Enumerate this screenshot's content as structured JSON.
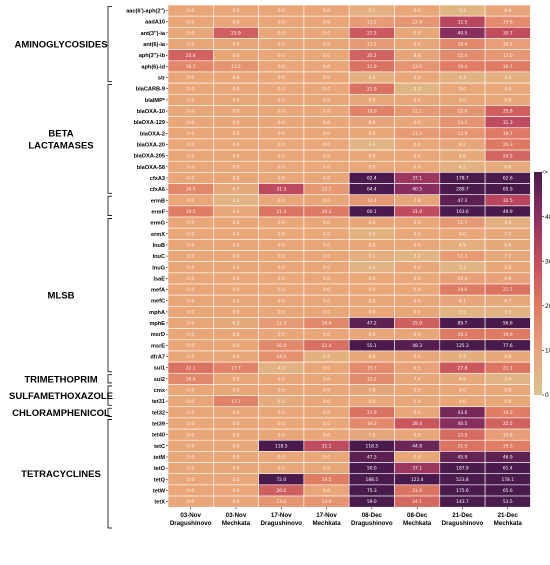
{
  "chart_data": {
    "type": "heatmap",
    "colorbar": {
      "min": 0,
      "max": 50,
      "ticks": [
        0,
        10,
        20,
        30,
        40
      ],
      "max_label": "> 50"
    },
    "columns": [
      {
        "date": "03-Nov",
        "site": "Dragushinovo"
      },
      {
        "date": "03-Nov",
        "site": "Mechkata"
      },
      {
        "date": "17-Nov",
        "site": "Dragushinovo"
      },
      {
        "date": "17-Nov",
        "site": "Mechkata"
      },
      {
        "date": "08-Dec",
        "site": "Dragushinovo"
      },
      {
        "date": "08-Dec",
        "site": "Mechkata"
      },
      {
        "date": "21-Dec",
        "site": "Dragushinovo"
      },
      {
        "date": "21-Dec",
        "site": "Mechkata"
      }
    ],
    "groups": [
      {
        "name": "AMINOGLYCOSIDES",
        "rows": 7
      },
      {
        "name": "BETA LACTAMASES",
        "rows": 10
      },
      {
        "name": "",
        "rows": 2
      },
      {
        "name": "MLSB",
        "rows": 14
      },
      {
        "name": "TRIMETHOPRIM",
        "rows": 1
      },
      {
        "name": "SULFAMETHOXAZOLE",
        "rows": 2
      },
      {
        "name": "CHLORAMPHENICOL",
        "rows": 1
      },
      {
        "name": "TETRACYCLINES",
        "rows": 10
      }
    ],
    "rows": [
      {
        "gene": "aac(6')-aph(2'')",
        "values": [
          0.0,
          0.0,
          0.0,
          0.0,
          5.1,
          0.0,
          3.2,
          8.9
        ]
      },
      {
        "gene": "aadA10",
        "values": [
          0.0,
          0.0,
          0.0,
          0.0,
          11.2,
          12.9,
          32.5,
          15.6
        ]
      },
      {
        "gene": "ant(3'')-ia",
        "values": [
          0.0,
          25.9,
          0.0,
          0.0,
          27.5,
          0.0,
          40.5,
          30.7
        ]
      },
      {
        "gene": "ant(6)-ia",
        "values": [
          0.0,
          0.0,
          0.0,
          0.0,
          11.2,
          0.0,
          16.4,
          10.2
        ]
      },
      {
        "gene": "aph(3'')-ib",
        "values": [
          25.4,
          0.0,
          0.0,
          0.0,
          25.2,
          8.6,
          15.4,
          12.0
        ]
      },
      {
        "gene": "aph(6)-id",
        "values": [
          16.7,
          13.2,
          0.0,
          0.0,
          21.9,
          13.5,
          19.4,
          19.7
        ]
      },
      {
        "gene": "str",
        "values": [
          0.0,
          0.0,
          0.0,
          0.0,
          4.4,
          0.0,
          4.3,
          4.4
        ]
      },
      {
        "gene": "blaCARB-9",
        "values": [
          0.0,
          0.0,
          0.0,
          0.0,
          21.9,
          3.3,
          0.0,
          0.0
        ]
      },
      {
        "gene": "blaIMP*",
        "values": [
          0.0,
          0.0,
          0.0,
          0.0,
          0.0,
          0.0,
          0.0,
          0.0
        ]
      },
      {
        "gene": "blaOXA-10",
        "values": [
          0.0,
          0.0,
          0.0,
          0.0,
          18.0,
          12.1,
          12.9,
          25.9
        ]
      },
      {
        "gene": "blaOXA-129",
        "values": [
          0.0,
          0.0,
          0.0,
          0.0,
          8.9,
          0.0,
          13.1,
          31.3
        ]
      },
      {
        "gene": "blaOXA-2",
        "values": [
          0.0,
          0.0,
          0.0,
          0.0,
          0.0,
          11.2,
          12.9,
          19.7
        ]
      },
      {
        "gene": "blaOXA-20",
        "values": [
          0.0,
          0.0,
          0.0,
          0.0,
          3.4,
          0.0,
          8.2,
          20.3
        ]
      },
      {
        "gene": "blaOXA-205",
        "values": [
          0.0,
          0.0,
          0.0,
          0.0,
          0.0,
          0.0,
          6.8,
          24.5
        ]
      },
      {
        "gene": "blaOXA-58",
        "values": [
          0.0,
          0.0,
          0.0,
          0.0,
          0.0,
          0.0,
          4.2,
          6.6
        ]
      },
      {
        "gene": "cfxA3",
        "values": [
          0.0,
          0.0,
          0.0,
          0.0,
          62.4,
          37.1,
          178.7,
          62.6
        ]
      },
      {
        "gene": "cfxA6",
        "values": [
          16.5,
          6.7,
          31.3,
          12.2,
          64.4,
          40.5,
          289.7,
          65.9
        ]
      },
      {
        "gene": "ermB",
        "values": [
          0.0,
          3.4,
          0.0,
          0.0,
          12.4,
          7.8,
          47.3,
          32.5
        ]
      },
      {
        "gene": "ermF",
        "values": [
          19.5,
          0.0,
          21.3,
          20.3,
          60.1,
          31.0,
          163.6,
          49.9
        ]
      },
      {
        "gene": "ermG",
        "values": [
          0.0,
          0.0,
          0.0,
          0.0,
          0.0,
          0.0,
          11.7,
          4.9
        ]
      },
      {
        "gene": "ermX",
        "values": [
          0.0,
          0.0,
          0.0,
          0.0,
          4.5,
          0.0,
          0.0,
          7.2
        ]
      },
      {
        "gene": "lnuB",
        "values": [
          0.0,
          0.0,
          0.0,
          0.0,
          0.0,
          0.0,
          4.9,
          6.6
        ]
      },
      {
        "gene": "lnuC",
        "values": [
          0.0,
          0.0,
          0.0,
          0.0,
          5.1,
          3.4,
          11.3,
          7.2
        ]
      },
      {
        "gene": "lnuG",
        "values": [
          0.0,
          0.0,
          0.0,
          0.0,
          3.4,
          0.0,
          3.3,
          0.0
        ]
      },
      {
        "gene": "lsaE",
        "values": [
          0.0,
          0.0,
          0.0,
          0.0,
          0.0,
          0.0,
          10.4,
          9.6
        ]
      },
      {
        "gene": "mefA",
        "values": [
          0.0,
          0.0,
          0.0,
          0.0,
          0.0,
          0.0,
          19.6,
          21.7
        ]
      },
      {
        "gene": "mefC",
        "values": [
          0.0,
          0.0,
          0.0,
          0.0,
          0.0,
          0.0,
          8.1,
          6.7
        ]
      },
      {
        "gene": "mphA",
        "values": [
          0.0,
          0.0,
          0.0,
          0.0,
          0.0,
          0.0,
          3.5,
          3.9
        ]
      },
      {
        "gene": "mphE",
        "values": [
          0.0,
          6.3,
          11.3,
          16.6,
          47.2,
          25.9,
          89.7,
          56.6
        ]
      },
      {
        "gene": "msrD",
        "values": [
          0.0,
          0.0,
          0.0,
          0.0,
          0.0,
          0.0,
          20.3,
          19.9
        ]
      },
      {
        "gene": "msrE",
        "values": [
          0.0,
          0.0,
          16.0,
          22.4,
          55.1,
          48.3,
          125.3,
          77.6
        ]
      },
      {
        "gene": "dfrA7",
        "values": [
          0.0,
          0.0,
          14.0,
          4.5,
          0.0,
          0.0,
          5.3,
          0.0
        ]
      },
      {
        "gene": "sul1",
        "values": [
          22.1,
          17.7,
          4.0,
          0.0,
          15.7,
          9.5,
          27.8,
          21.1
        ]
      },
      {
        "gene": "sul2",
        "values": [
          16.0,
          0.0,
          0.0,
          0.0,
          15.2,
          7.4,
          6.8,
          3.4
        ]
      },
      {
        "gene": "cmx",
        "values": [
          0.0,
          0.0,
          0.0,
          0.0,
          7.9,
          0.0,
          0.0,
          0.0
        ]
      },
      {
        "gene": "tet31",
        "values": [
          0.0,
          17.7,
          6.0,
          0.0,
          0.0,
          0.0,
          0.0,
          0.0
        ]
      },
      {
        "gene": "tet32",
        "values": [
          0.0,
          0.0,
          0.0,
          0.0,
          21.9,
          0.0,
          43.6,
          19.3
        ]
      },
      {
        "gene": "tet39",
        "values": [
          0.0,
          0.0,
          0.0,
          0.0,
          16.3,
          28.4,
          40.5,
          25.5
        ]
      },
      {
        "gene": "tet40",
        "values": [
          0.0,
          0.0,
          0.0,
          0.0,
          7.9,
          0.0,
          23.5,
          10.8
        ]
      },
      {
        "gene": "tetC",
        "values": [
          0.0,
          0.0,
          118.5,
          31.1,
          118.5,
          44.8,
          21.5,
          19.3
        ]
      },
      {
        "gene": "tetM",
        "values": [
          0.0,
          0.0,
          0.0,
          0.0,
          47.3,
          0.0,
          45.9,
          46.9
        ]
      },
      {
        "gene": "tetO",
        "values": [
          0.0,
          0.0,
          0.0,
          0.0,
          50.0,
          37.1,
          187.9,
          61.4
        ]
      },
      {
        "gene": "tetQ",
        "values": [
          0.0,
          0.0,
          72.0,
          19.5,
          188.5,
          122.4,
          523.8,
          178.1
        ]
      },
      {
        "gene": "tetW",
        "values": [
          0.0,
          0.0,
          26.0,
          0.0,
          75.3,
          21.6,
          175.6,
          65.6
        ]
      },
      {
        "gene": "tetX",
        "values": [
          0.0,
          0.0,
          13.0,
          13.0,
          59.0,
          24.1,
          143.7,
          53.5
        ]
      }
    ]
  }
}
